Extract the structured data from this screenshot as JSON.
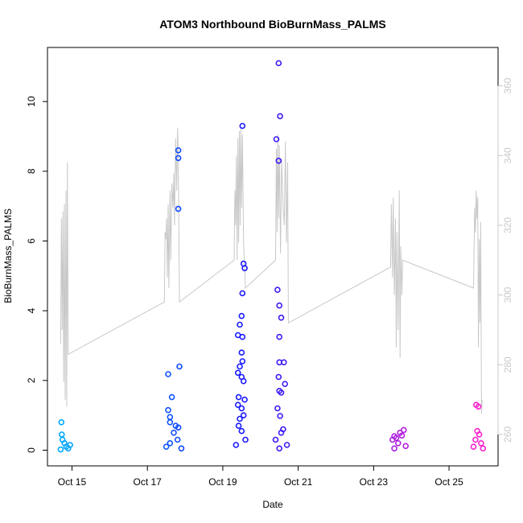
{
  "chart_data": {
    "type": "scatter",
    "title": "ATOM3 Northbound BioBurnMass_PALMS",
    "xlabel": "Date",
    "ylabel": "BioBurnMass_PALMS",
    "x_ticks": [
      "Oct 15",
      "Oct 17",
      "Oct 19",
      "Oct 21",
      "Oct 23",
      "Oct 25"
    ],
    "x_tick_days": [
      15,
      17,
      19,
      21,
      23,
      25
    ],
    "xlim": [
      "Oct 14",
      "Oct 26"
    ],
    "xlim_days": [
      14.35,
      26.3
    ],
    "ylim": [
      -0.45,
      11.55
    ],
    "y_ticks": [
      0,
      2,
      4,
      6,
      8,
      10
    ],
    "y2_ticks": [
      260,
      280,
      300,
      320,
      340,
      360
    ],
    "y2lim": [
      251,
      371
    ],
    "colors": {
      "points_start": "#00aaff",
      "points_mid": "#1a1aff",
      "points_end": "#ff22cc",
      "secondary_line": "#c8c8c8"
    },
    "series": [
      {
        "axis": "left",
        "style": "points",
        "points": [
          [
            14.72,
            0.8
          ],
          [
            14.73,
            0.45
          ],
          [
            14.75,
            0.3
          ],
          [
            14.8,
            0.2
          ],
          [
            14.85,
            0.1
          ],
          [
            14.9,
            0.05
          ],
          [
            14.95,
            0.15
          ],
          [
            14.7,
            0.02
          ],
          [
            17.55,
            2.18
          ],
          [
            17.65,
            1.52
          ],
          [
            17.55,
            1.15
          ],
          [
            17.6,
            0.95
          ],
          [
            17.6,
            0.8
          ],
          [
            17.75,
            0.7
          ],
          [
            17.82,
            0.65
          ],
          [
            17.85,
            2.4
          ],
          [
            17.82,
            6.92
          ],
          [
            17.82,
            8.38
          ],
          [
            17.82,
            8.6
          ],
          [
            17.7,
            0.5
          ],
          [
            17.8,
            0.3
          ],
          [
            17.6,
            0.2
          ],
          [
            17.5,
            0.1
          ],
          [
            17.9,
            0.05
          ],
          [
            19.52,
            9.3
          ],
          [
            19.55,
            5.35
          ],
          [
            19.58,
            5.22
          ],
          [
            19.52,
            4.5
          ],
          [
            19.5,
            3.85
          ],
          [
            19.45,
            3.6
          ],
          [
            19.4,
            3.3
          ],
          [
            19.52,
            3.25
          ],
          [
            19.5,
            2.8
          ],
          [
            19.52,
            2.55
          ],
          [
            19.45,
            2.4
          ],
          [
            19.4,
            2.22
          ],
          [
            19.5,
            2.1
          ],
          [
            19.55,
            1.98
          ],
          [
            19.42,
            1.52
          ],
          [
            19.58,
            1.45
          ],
          [
            19.4,
            1.3
          ],
          [
            19.5,
            1.2
          ],
          [
            19.55,
            1.0
          ],
          [
            19.45,
            0.9
          ],
          [
            19.42,
            0.7
          ],
          [
            19.5,
            0.55
          ],
          [
            19.6,
            0.3
          ],
          [
            19.35,
            0.15
          ],
          [
            20.48,
            11.1
          ],
          [
            20.52,
            9.58
          ],
          [
            20.42,
            8.92
          ],
          [
            20.48,
            8.3
          ],
          [
            20.45,
            4.6
          ],
          [
            20.5,
            4.15
          ],
          [
            20.55,
            3.8
          ],
          [
            20.5,
            3.25
          ],
          [
            20.5,
            2.52
          ],
          [
            20.62,
            2.52
          ],
          [
            20.48,
            2.1
          ],
          [
            20.65,
            1.9
          ],
          [
            20.5,
            1.7
          ],
          [
            20.55,
            1.65
          ],
          [
            20.45,
            1.2
          ],
          [
            20.52,
            0.98
          ],
          [
            20.6,
            0.6
          ],
          [
            20.55,
            0.5
          ],
          [
            20.4,
            0.3
          ],
          [
            20.7,
            0.15
          ],
          [
            20.5,
            0.05
          ],
          [
            23.5,
            0.3
          ],
          [
            23.55,
            0.4
          ],
          [
            23.6,
            0.35
          ],
          [
            23.7,
            0.5
          ],
          [
            23.8,
            0.58
          ],
          [
            23.75,
            0.42
          ],
          [
            23.65,
            0.2
          ],
          [
            23.85,
            0.12
          ],
          [
            23.55,
            0.05
          ],
          [
            25.72,
            1.3
          ],
          [
            25.78,
            1.25
          ],
          [
            25.75,
            0.55
          ],
          [
            25.8,
            0.45
          ],
          [
            25.7,
            0.3
          ],
          [
            25.85,
            0.2
          ],
          [
            25.65,
            0.1
          ],
          [
            25.9,
            0.05
          ]
        ]
      },
      {
        "axis": "right",
        "style": "line",
        "points": [
          [
            14.7,
            286
          ],
          [
            14.72,
            322
          ],
          [
            14.74,
            290
          ],
          [
            14.76,
            324
          ],
          [
            14.78,
            275
          ],
          [
            14.8,
            326
          ],
          [
            14.82,
            270
          ],
          [
            14.84,
            330
          ],
          [
            14.86,
            268
          ],
          [
            14.88,
            338
          ],
          [
            14.9,
            283
          ],
          [
            17.45,
            298
          ],
          [
            17.47,
            318
          ],
          [
            17.49,
            316
          ],
          [
            17.51,
            322
          ],
          [
            17.53,
            305
          ],
          [
            17.55,
            326
          ],
          [
            17.57,
            302
          ],
          [
            17.6,
            330
          ],
          [
            17.62,
            310
          ],
          [
            17.65,
            332
          ],
          [
            17.68,
            325
          ],
          [
            17.7,
            335
          ],
          [
            17.72,
            320
          ],
          [
            17.75,
            345
          ],
          [
            17.78,
            330
          ],
          [
            17.8,
            348
          ],
          [
            17.82,
            340
          ],
          [
            17.85,
            298
          ],
          [
            19.3,
            310
          ],
          [
            19.32,
            330
          ],
          [
            19.34,
            320
          ],
          [
            19.36,
            340
          ],
          [
            19.38,
            310
          ],
          [
            19.4,
            345
          ],
          [
            19.42,
            315
          ],
          [
            19.44,
            347
          ],
          [
            19.46,
            320
          ],
          [
            19.48,
            348
          ],
          [
            19.5,
            325
          ],
          [
            19.52,
            346
          ],
          [
            19.55,
            315
          ],
          [
            19.6,
            302
          ],
          [
            20.4,
            310
          ],
          [
            20.42,
            342
          ],
          [
            20.44,
            318
          ],
          [
            20.46,
            346
          ],
          [
            20.48,
            322
          ],
          [
            20.5,
            343
          ],
          [
            20.53,
            312
          ],
          [
            20.56,
            339
          ],
          [
            20.6,
            325
          ],
          [
            20.63,
            320
          ],
          [
            20.66,
            344
          ],
          [
            20.69,
            315
          ],
          [
            20.72,
            338
          ],
          [
            20.74,
            292
          ],
          [
            23.45,
            308
          ],
          [
            23.47,
            326
          ],
          [
            23.5,
            305
          ],
          [
            23.52,
            328
          ],
          [
            23.55,
            300
          ],
          [
            23.58,
            322
          ],
          [
            23.6,
            285
          ],
          [
            23.62,
            318
          ],
          [
            23.65,
            290
          ],
          [
            23.68,
            330
          ],
          [
            23.7,
            282
          ],
          [
            23.72,
            314
          ],
          [
            23.75,
            300
          ],
          [
            23.77,
            310
          ],
          [
            25.65,
            302
          ],
          [
            25.68,
            325
          ],
          [
            25.7,
            318
          ],
          [
            25.72,
            330
          ],
          [
            25.74,
            322
          ],
          [
            25.76,
            328
          ],
          [
            25.78,
            285
          ],
          [
            25.8,
            316
          ],
          [
            25.82,
            292
          ],
          [
            25.84,
            321
          ],
          [
            25.86,
            266
          ],
          [
            25.88,
            270
          ]
        ]
      }
    ]
  }
}
